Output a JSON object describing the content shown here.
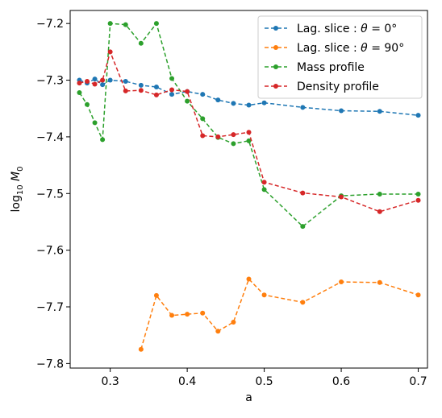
{
  "chart_data": {
    "type": "line",
    "xlabel": "a",
    "ylabel_prefix": "log",
    "ylabel_sub": "10",
    "ylabel_var": "M",
    "ylabel_var_sub": "0",
    "xlim": [
      0.248,
      0.712
    ],
    "ylim": [
      -7.808,
      -7.177
    ],
    "xticks": [
      0.3,
      0.4,
      0.5,
      0.6,
      0.7
    ],
    "xtick_labels": [
      "0.3",
      "0.4",
      "0.5",
      "0.6",
      "0.7"
    ],
    "yticks": [
      -7.8,
      -7.7,
      -7.6,
      -7.5,
      -7.4,
      -7.3,
      -7.2
    ],
    "ytick_labels": [
      "−7.8",
      "−7.7",
      "−7.6",
      "−7.5",
      "−7.4",
      "−7.3",
      "−7.2"
    ],
    "grid": false,
    "legend_position": "top-right",
    "series": [
      {
        "name_prefix": "Lag. slice : ",
        "name_theta": "θ",
        "name_suffix": " = 0°",
        "color": "#1f77b4",
        "x": [
          0.26,
          0.27,
          0.28,
          0.29,
          0.3,
          0.32,
          0.34,
          0.36,
          0.38,
          0.4,
          0.42,
          0.44,
          0.46,
          0.48,
          0.5,
          0.55,
          0.6,
          0.65,
          0.7
        ],
        "y": [
          -7.3,
          -7.305,
          -7.298,
          -7.308,
          -7.3,
          -7.302,
          -7.309,
          -7.312,
          -7.325,
          -7.32,
          -7.325,
          -7.335,
          -7.341,
          -7.344,
          -7.34,
          -7.348,
          -7.354,
          -7.355,
          -7.362
        ]
      },
      {
        "name_prefix": "Lag. slice : ",
        "name_theta": "θ",
        "name_suffix": " = 90°",
        "color": "#ff7f0e",
        "x": [
          0.34,
          0.36,
          0.38,
          0.4,
          0.42,
          0.44,
          0.46,
          0.48,
          0.5,
          0.55,
          0.6,
          0.65,
          0.7
        ],
        "y": [
          -7.775,
          -7.68,
          -7.715,
          -7.713,
          -7.711,
          -7.743,
          -7.727,
          -7.651,
          -7.679,
          -7.692,
          -7.656,
          -7.657,
          -7.679
        ]
      },
      {
        "name": "Mass profile",
        "color": "#2ca02c",
        "x": [
          0.26,
          0.27,
          0.28,
          0.29,
          0.3,
          0.32,
          0.34,
          0.36,
          0.38,
          0.4,
          0.42,
          0.44,
          0.46,
          0.48,
          0.5,
          0.55,
          0.6,
          0.65,
          0.7
        ],
        "y": [
          -7.322,
          -7.343,
          -7.375,
          -7.405,
          -7.2,
          -7.202,
          -7.235,
          -7.2,
          -7.297,
          -7.337,
          -7.368,
          -7.401,
          -7.412,
          -7.407,
          -7.493,
          -7.558,
          -7.504,
          -7.501,
          -7.501
        ]
      },
      {
        "name": "Density profile",
        "color": "#d62728",
        "x": [
          0.26,
          0.27,
          0.28,
          0.29,
          0.3,
          0.32,
          0.34,
          0.36,
          0.38,
          0.4,
          0.42,
          0.44,
          0.46,
          0.48,
          0.5,
          0.55,
          0.6,
          0.65,
          0.7
        ],
        "y": [
          -7.305,
          -7.302,
          -7.307,
          -7.3,
          -7.25,
          -7.319,
          -7.318,
          -7.326,
          -7.317,
          -7.32,
          -7.398,
          -7.4,
          -7.396,
          -7.392,
          -7.48,
          -7.499,
          -7.506,
          -7.532,
          -7.512
        ]
      }
    ]
  }
}
